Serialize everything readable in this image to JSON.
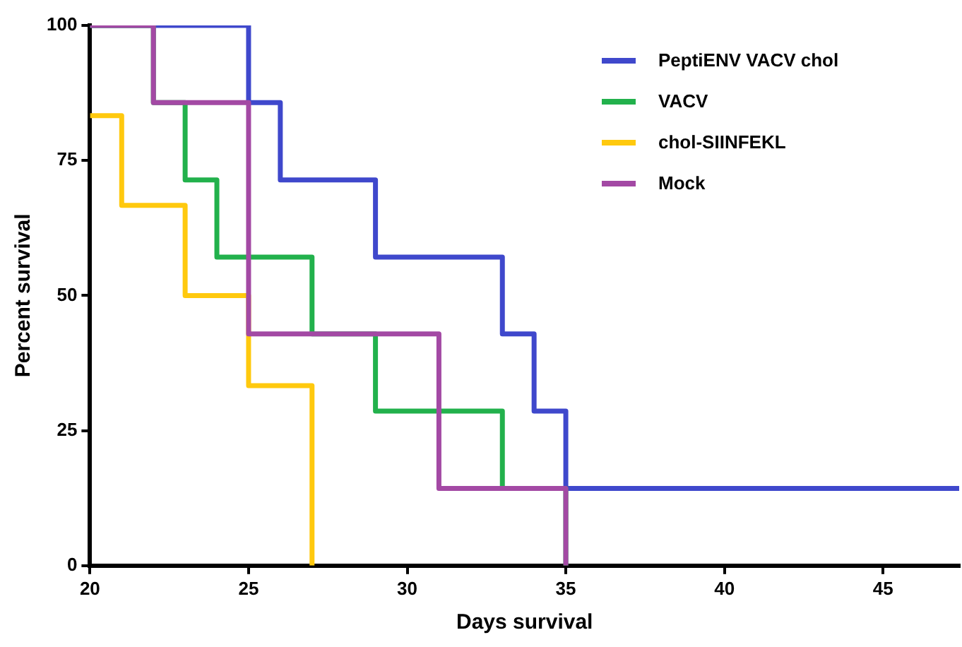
{
  "chart_data": {
    "type": "step",
    "xlabel": "Days survival",
    "ylabel": "Percent survival",
    "xlim": [
      20,
      47.4
    ],
    "xticks": [
      20,
      25,
      30,
      35,
      40,
      45
    ],
    "ylim": [
      0,
      100
    ],
    "yticks": [
      0,
      25,
      50,
      75,
      100
    ],
    "grid": false,
    "legend": "top right",
    "marker": "none",
    "series": [
      {
        "name": "PeptiENV VACV chol",
        "color": "#3f48cc",
        "x": [
          20,
          25,
          26,
          29,
          33,
          34,
          35,
          47.4
        ],
        "values": [
          100,
          85.7,
          71.4,
          57.1,
          42.9,
          28.6,
          14.3,
          14.3
        ]
      },
      {
        "name": "VACV",
        "color": "#22b14c",
        "x": [
          20,
          22,
          23,
          24,
          27,
          29,
          33,
          35
        ],
        "values": [
          100,
          85.7,
          71.4,
          57.1,
          42.9,
          28.6,
          14.3,
          0
        ]
      },
      {
        "name": "chol-SIINFEKL",
        "color": "#ffc90e",
        "x": [
          20,
          21,
          23,
          25,
          27
        ],
        "values": [
          83.3,
          66.7,
          50,
          33.3,
          0
        ]
      },
      {
        "name": "Mock",
        "color": "#a349a4",
        "x": [
          20,
          22,
          25,
          31,
          35
        ],
        "values": [
          100,
          85.7,
          42.9,
          14.3,
          0
        ]
      }
    ]
  }
}
